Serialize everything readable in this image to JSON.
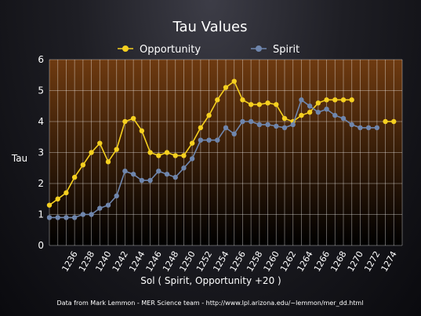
{
  "chart_data": {
    "type": "line",
    "title": "Tau Values",
    "xlabel": "Sol ( Spirit, Opportunity +20 )",
    "ylabel": "Tau",
    "ylim": [
      0,
      6
    ],
    "yticks": [
      "0",
      "1",
      "2",
      "3",
      "4",
      "5",
      "6"
    ],
    "xlim": [
      1233,
      1275
    ],
    "xticks": [
      "1236",
      "1238",
      "1240",
      "1242",
      "1244",
      "1246",
      "1248",
      "1250",
      "1252",
      "1254",
      "1256",
      "1258",
      "1260",
      "1262",
      "1264",
      "1266",
      "1268",
      "1270",
      "1272",
      "1274"
    ],
    "grid": true,
    "legend_position": "top",
    "footer": "Data from Mark Lemmon - MER Science team - http://www.lpl.arizona.edu/~lemmon/mer_dd.html",
    "series": [
      {
        "name": "Opportunity",
        "color": "#f5d020",
        "x": [
          1233,
          1234,
          1235,
          1236,
          1237,
          1238,
          1239,
          1240,
          1241,
          1242,
          1243,
          1244,
          1245,
          1246,
          1247,
          1248,
          1249,
          1250,
          1251,
          1252,
          1253,
          1254,
          1255,
          1256,
          1257,
          1258,
          1259,
          1260,
          1261,
          1262,
          1263,
          1264,
          1265,
          1266,
          1267,
          1268,
          1269,
          1273,
          1274
        ],
        "y": [
          1.3,
          1.5,
          1.7,
          2.2,
          2.6,
          3.0,
          3.3,
          2.7,
          3.1,
          4.0,
          4.1,
          3.7,
          3.0,
          2.9,
          3.0,
          2.9,
          2.9,
          3.3,
          3.8,
          4.2,
          4.7,
          5.1,
          5.3,
          4.7,
          4.55,
          4.55,
          4.6,
          4.55,
          4.1,
          4.0,
          4.2,
          4.3,
          4.6,
          4.7,
          4.7,
          4.7,
          4.7,
          4.0,
          4.0
        ],
        "segments": [
          [
            0,
            36
          ],
          [
            37,
            38
          ]
        ]
      },
      {
        "name": "Spirit",
        "color": "#6f86ad",
        "x": [
          1233,
          1234,
          1235,
          1236,
          1237,
          1238,
          1239,
          1240,
          1241,
          1242,
          1243,
          1244,
          1245,
          1246,
          1247,
          1248,
          1249,
          1250,
          1251,
          1252,
          1253,
          1254,
          1255,
          1256,
          1257,
          1258,
          1259,
          1260,
          1261,
          1262,
          1263,
          1264,
          1265,
          1266,
          1267,
          1268,
          1269,
          1270,
          1271,
          1272
        ],
        "y": [
          0.9,
          0.9,
          0.9,
          0.9,
          1.0,
          1.0,
          1.2,
          1.3,
          1.6,
          2.4,
          2.3,
          2.1,
          2.1,
          2.4,
          2.3,
          2.2,
          2.5,
          2.8,
          3.4,
          3.4,
          3.4,
          3.8,
          3.6,
          4.0,
          4.0,
          3.9,
          3.9,
          3.85,
          3.8,
          3.9,
          4.7,
          4.5,
          4.3,
          4.4,
          4.2,
          4.1,
          3.9,
          3.8,
          3.8,
          3.8
        ],
        "segments": [
          [
            0,
            39
          ]
        ]
      }
    ]
  }
}
